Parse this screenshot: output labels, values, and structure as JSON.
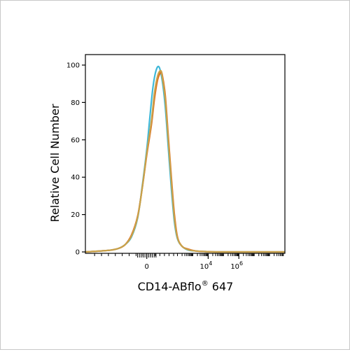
{
  "chart_data": {
    "type": "line",
    "xlabel_main": "CD14-ABflo",
    "xlabel_reg": "®",
    "xlabel_tail": " 647",
    "ylabel": "Relative Cell Number",
    "y_ticks": [
      0,
      20,
      40,
      60,
      80,
      100
    ],
    "x_tick_labels": [
      {
        "label": "0",
        "pos": 0
      },
      {
        "label": "10",
        "sup": "4",
        "pos": 4
      },
      {
        "label": "10",
        "sup": "6",
        "pos": 6
      }
    ],
    "ylim": [
      0,
      100
    ],
    "xlim": [
      -4,
      9
    ],
    "grid": false,
    "series": [
      {
        "color": "#3fb8d8",
        "x": [
          -4.0,
          -3.0,
          -2.3,
          -1.8,
          -1.4,
          -1.0,
          -0.6,
          -0.3,
          0.0,
          0.2,
          0.4,
          0.6,
          0.8,
          1.0,
          1.2,
          1.4,
          1.6,
          1.8,
          2.0,
          2.3,
          2.7,
          3.2,
          3.8,
          4.5,
          6.0,
          9.0
        ],
        "y": [
          0,
          0.5,
          1,
          2,
          4,
          8,
          18,
          35,
          55,
          72,
          88,
          97,
          99,
          92,
          78,
          56,
          34,
          16,
          7,
          3,
          1,
          0.5,
          0.2,
          0,
          0,
          0
        ]
      },
      {
        "color": "#e06a1c",
        "x": [
          -4.0,
          -3.0,
          -2.3,
          -1.8,
          -1.4,
          -1.0,
          -0.6,
          -0.3,
          0.0,
          0.3,
          0.5,
          0.7,
          0.9,
          1.0,
          1.2,
          1.4,
          1.6,
          1.8,
          2.0,
          2.3,
          2.7,
          3.2,
          3.8,
          4.5,
          6.0,
          9.0
        ],
        "y": [
          0,
          0.5,
          1,
          2,
          4,
          9,
          19,
          34,
          52,
          68,
          82,
          92,
          96,
          95,
          84,
          62,
          40,
          20,
          8,
          3,
          1.5,
          0.5,
          0.2,
          0,
          0,
          0
        ]
      },
      {
        "color": "#c9a24a",
        "x": [
          -4.0,
          -3.0,
          -2.3,
          -1.8,
          -1.4,
          -1.0,
          -0.6,
          -0.3,
          0.0,
          0.3,
          0.5,
          0.7,
          0.9,
          1.0,
          1.2,
          1.4,
          1.6,
          1.8,
          2.0,
          2.3,
          2.7,
          3.2,
          3.8,
          4.5,
          6.0,
          9.0
        ],
        "y": [
          0,
          0.5,
          1,
          2,
          4,
          8.5,
          18.5,
          34,
          53,
          70,
          85,
          94,
          97,
          94,
          82,
          60,
          38,
          18,
          7.5,
          3,
          1.2,
          0.5,
          0.2,
          0,
          0,
          0
        ]
      }
    ]
  }
}
